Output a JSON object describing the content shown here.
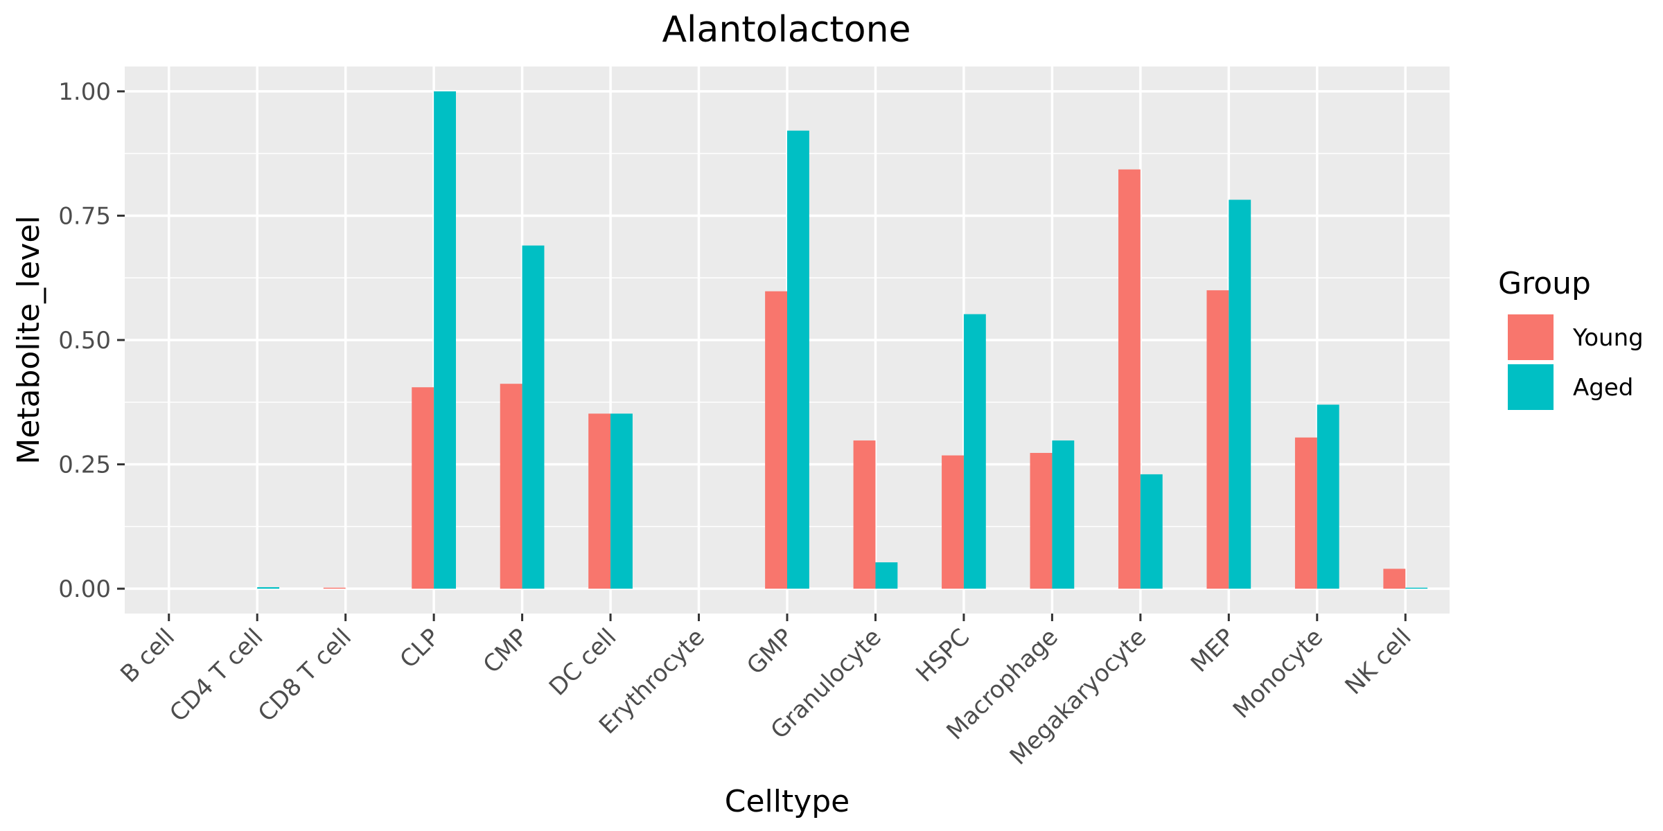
{
  "chart_data": {
    "type": "bar",
    "title": "Alantolactone",
    "xlabel": "Celltype",
    "ylabel": "Metabolite_level",
    "ylim": [
      -0.05,
      1.05
    ],
    "yticks": [
      0.0,
      0.25,
      0.5,
      0.75,
      1.0
    ],
    "ytick_labels": [
      "0.00",
      "0.25",
      "0.50",
      "0.75",
      "1.00"
    ],
    "grid": true,
    "legend": {
      "title": "Group",
      "position": "right"
    },
    "categories": [
      "B cell",
      "CD4 T cell",
      "CD8 T cell",
      "CLP",
      "CMP",
      "DC cell",
      "Erythrocyte",
      "GMP",
      "Granulocyte",
      "HSPC",
      "Macrophage",
      "Megakaryocyte",
      "MEP",
      "Monocyte",
      "NK cell"
    ],
    "series": [
      {
        "name": "Young",
        "color": "#F8766D",
        "values": [
          0.0,
          0.0,
          0.002,
          0.405,
          0.412,
          0.352,
          0.0,
          0.598,
          0.298,
          0.268,
          0.273,
          0.843,
          0.6,
          0.304,
          0.04
        ]
      },
      {
        "name": "Aged",
        "color": "#00BFC4",
        "values": [
          0.0,
          0.003,
          0.0,
          1.0,
          0.69,
          0.352,
          0.0,
          0.921,
          0.053,
          0.552,
          0.298,
          0.23,
          0.782,
          0.37,
          0.002
        ]
      }
    ]
  }
}
